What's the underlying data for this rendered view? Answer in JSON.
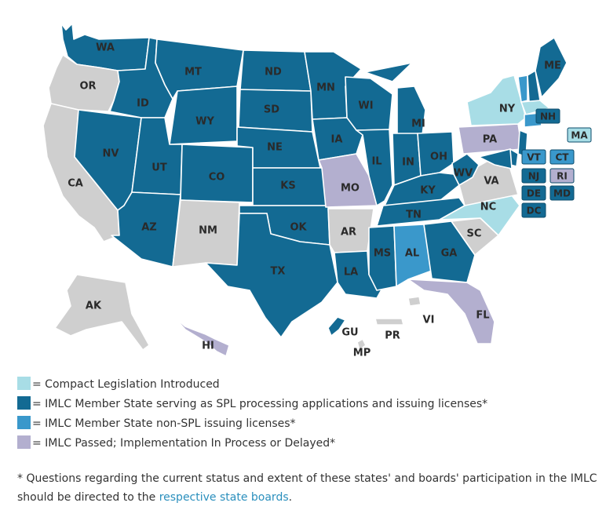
{
  "colors": {
    "introduced": "#a8dde6",
    "member_spl": "#136a93",
    "member_non_spl": "#3a98cb",
    "passed": "#b3afcf",
    "none": "#cfcfcf"
  },
  "states": [
    {
      "abbr": "WA",
      "status": "member_spl"
    },
    {
      "abbr": "OR",
      "status": "none"
    },
    {
      "abbr": "CA",
      "status": "none"
    },
    {
      "abbr": "ID",
      "status": "member_spl"
    },
    {
      "abbr": "NV",
      "status": "member_spl"
    },
    {
      "abbr": "MT",
      "status": "member_spl"
    },
    {
      "abbr": "WY",
      "status": "member_spl"
    },
    {
      "abbr": "UT",
      "status": "member_spl"
    },
    {
      "abbr": "AZ",
      "status": "member_spl"
    },
    {
      "abbr": "CO",
      "status": "member_spl"
    },
    {
      "abbr": "NM",
      "status": "none"
    },
    {
      "abbr": "ND",
      "status": "member_spl"
    },
    {
      "abbr": "SD",
      "status": "member_spl"
    },
    {
      "abbr": "NE",
      "status": "member_spl"
    },
    {
      "abbr": "KS",
      "status": "member_spl"
    },
    {
      "abbr": "OK",
      "status": "member_spl"
    },
    {
      "abbr": "TX",
      "status": "member_spl"
    },
    {
      "abbr": "MN",
      "status": "member_spl"
    },
    {
      "abbr": "IA",
      "status": "member_spl"
    },
    {
      "abbr": "MO",
      "status": "passed"
    },
    {
      "abbr": "AR",
      "status": "none"
    },
    {
      "abbr": "LA",
      "status": "member_spl"
    },
    {
      "abbr": "WI",
      "status": "member_spl"
    },
    {
      "abbr": "IL",
      "status": "member_spl"
    },
    {
      "abbr": "MI",
      "status": "member_spl"
    },
    {
      "abbr": "IN",
      "status": "member_spl"
    },
    {
      "abbr": "OH",
      "status": "member_spl"
    },
    {
      "abbr": "KY",
      "status": "member_spl"
    },
    {
      "abbr": "TN",
      "status": "member_spl"
    },
    {
      "abbr": "MS",
      "status": "member_spl"
    },
    {
      "abbr": "AL",
      "status": "member_non_spl"
    },
    {
      "abbr": "GA",
      "status": "member_spl"
    },
    {
      "abbr": "FL",
      "status": "passed"
    },
    {
      "abbr": "SC",
      "status": "none"
    },
    {
      "abbr": "NC",
      "status": "introduced"
    },
    {
      "abbr": "VA",
      "status": "none"
    },
    {
      "abbr": "WV",
      "status": "member_spl"
    },
    {
      "abbr": "PA",
      "status": "passed"
    },
    {
      "abbr": "NY",
      "status": "introduced"
    },
    {
      "abbr": "ME",
      "status": "member_spl"
    },
    {
      "abbr": "AK",
      "status": "none"
    },
    {
      "abbr": "HI",
      "status": "passed"
    },
    {
      "abbr": "GU",
      "status": "member_spl"
    },
    {
      "abbr": "PR",
      "status": "none"
    },
    {
      "abbr": "VI",
      "status": "none"
    },
    {
      "abbr": "MP",
      "status": "none"
    }
  ],
  "small_states": [
    {
      "abbr": "NH",
      "status": "member_spl"
    },
    {
      "abbr": "MA",
      "status": "introduced"
    },
    {
      "abbr": "VT",
      "status": "member_non_spl"
    },
    {
      "abbr": "CT",
      "status": "member_non_spl"
    },
    {
      "abbr": "NJ",
      "status": "member_spl"
    },
    {
      "abbr": "RI",
      "status": "passed"
    },
    {
      "abbr": "DE",
      "status": "member_spl"
    },
    {
      "abbr": "MD",
      "status": "member_spl"
    },
    {
      "abbr": "DC",
      "status": "member_spl"
    }
  ],
  "legend": [
    {
      "status": "introduced",
      "text": "= Compact Legislation Introduced"
    },
    {
      "status": "member_spl",
      "text": "= IMLC Member State serving as SPL processing applications and issuing licenses*"
    },
    {
      "status": "member_non_spl",
      "text": "= IMLC Member State non-SPL issuing licenses*"
    },
    {
      "status": "passed",
      "text": "= IMLC Passed; Implementation In Process or Delayed*"
    }
  ],
  "footnote": {
    "text": "* Questions regarding the current status and extent of these states' and boards' participation in the IMLC should be directed to the",
    "link": "respective state boards",
    "end": "."
  }
}
